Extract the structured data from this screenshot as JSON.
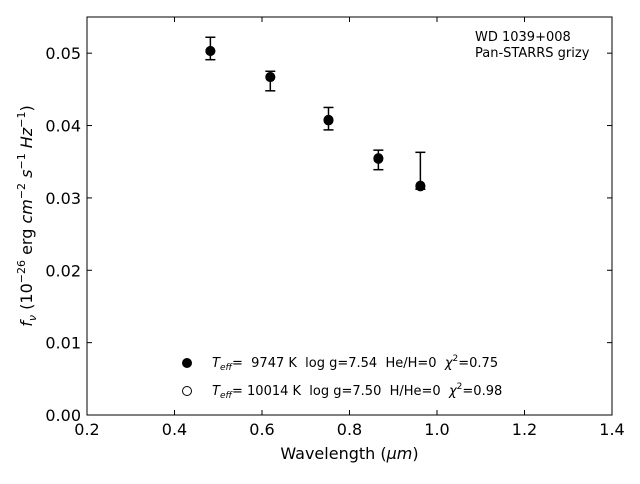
{
  "chart_data": {
    "type": "scatter",
    "xlabel": "Wavelength (μm)",
    "xlabel_parts": {
      "main": "Wavelength (",
      "unit": "μm",
      "close": ")"
    },
    "ylabel": "f_ν (10^-26 erg cm^-2 s^-1 Hz^-1)",
    "ylabel_parts": {
      "f": "f",
      "nu": "ν",
      "open": " (10",
      "exp1": "−26",
      "erg": " erg ",
      "cm": "cm",
      "exp2": "−2",
      "s": "s",
      "exp3": "−1",
      "hz": "Hz",
      "exp4": "−1",
      "close": ")"
    },
    "xlim": [
      0.2,
      1.4
    ],
    "ylim": [
      0.0,
      0.055
    ],
    "x_ticks": [
      0.2,
      0.4,
      0.6,
      0.8,
      1.0,
      1.2,
      1.4
    ],
    "x_tick_labels": [
      "0.2",
      "0.4",
      "0.6",
      "0.8",
      "1.0",
      "1.2",
      "1.4"
    ],
    "y_ticks": [
      0.0,
      0.01,
      0.02,
      0.03,
      0.04,
      0.05
    ],
    "y_tick_labels": [
      "0.00",
      "0.01",
      "0.02",
      "0.03",
      "0.04",
      "0.05"
    ],
    "grid": false,
    "annotation": {
      "line1": "WD 1039+008",
      "line2": "Pan-STARRS grizy"
    },
    "observed": {
      "name": "Pan-STARRS grizy",
      "points": [
        {
          "x": 0.482,
          "y": 0.0506,
          "yerr_low": 0.0491,
          "yerr_high": 0.0522
        },
        {
          "x": 0.619,
          "y": 0.0469,
          "yerr_low": 0.0448,
          "yerr_high": 0.0475
        },
        {
          "x": 0.752,
          "y": 0.041,
          "yerr_low": 0.0394,
          "yerr_high": 0.0425
        },
        {
          "x": 0.866,
          "y": 0.0356,
          "yerr_low": 0.0339,
          "yerr_high": 0.0366
        },
        {
          "x": 0.962,
          "y": 0.0318,
          "yerr_low": 0.0312,
          "yerr_high": 0.0363
        }
      ]
    },
    "models": [
      {
        "marker": "filled-circle",
        "teff_symbol": "T",
        "teff_sub": "eff",
        "text_pre": "=  9747 K  log g=7.54  He/H=0  ",
        "chi": "χ",
        "chi_exp": "2",
        "text_post": "=0.75",
        "points": [
          {
            "x": 0.482,
            "y": 0.0503
          },
          {
            "x": 0.619,
            "y": 0.0467
          },
          {
            "x": 0.752,
            "y": 0.0407
          },
          {
            "x": 0.866,
            "y": 0.0354
          },
          {
            "x": 0.962,
            "y": 0.0316
          }
        ]
      },
      {
        "marker": "open-circle",
        "teff_symbol": "T",
        "teff_sub": "eff",
        "text_pre": "= 10014 K  log g=7.50  H/He=0  ",
        "chi": "χ",
        "chi_exp": "2",
        "text_post": "=0.98",
        "points": [
          {
            "x": 0.482,
            "y": 0.0503
          },
          {
            "x": 0.619,
            "y": 0.0467
          },
          {
            "x": 0.752,
            "y": 0.0408
          },
          {
            "x": 0.866,
            "y": 0.0355
          },
          {
            "x": 0.962,
            "y": 0.0317
          }
        ]
      }
    ]
  }
}
